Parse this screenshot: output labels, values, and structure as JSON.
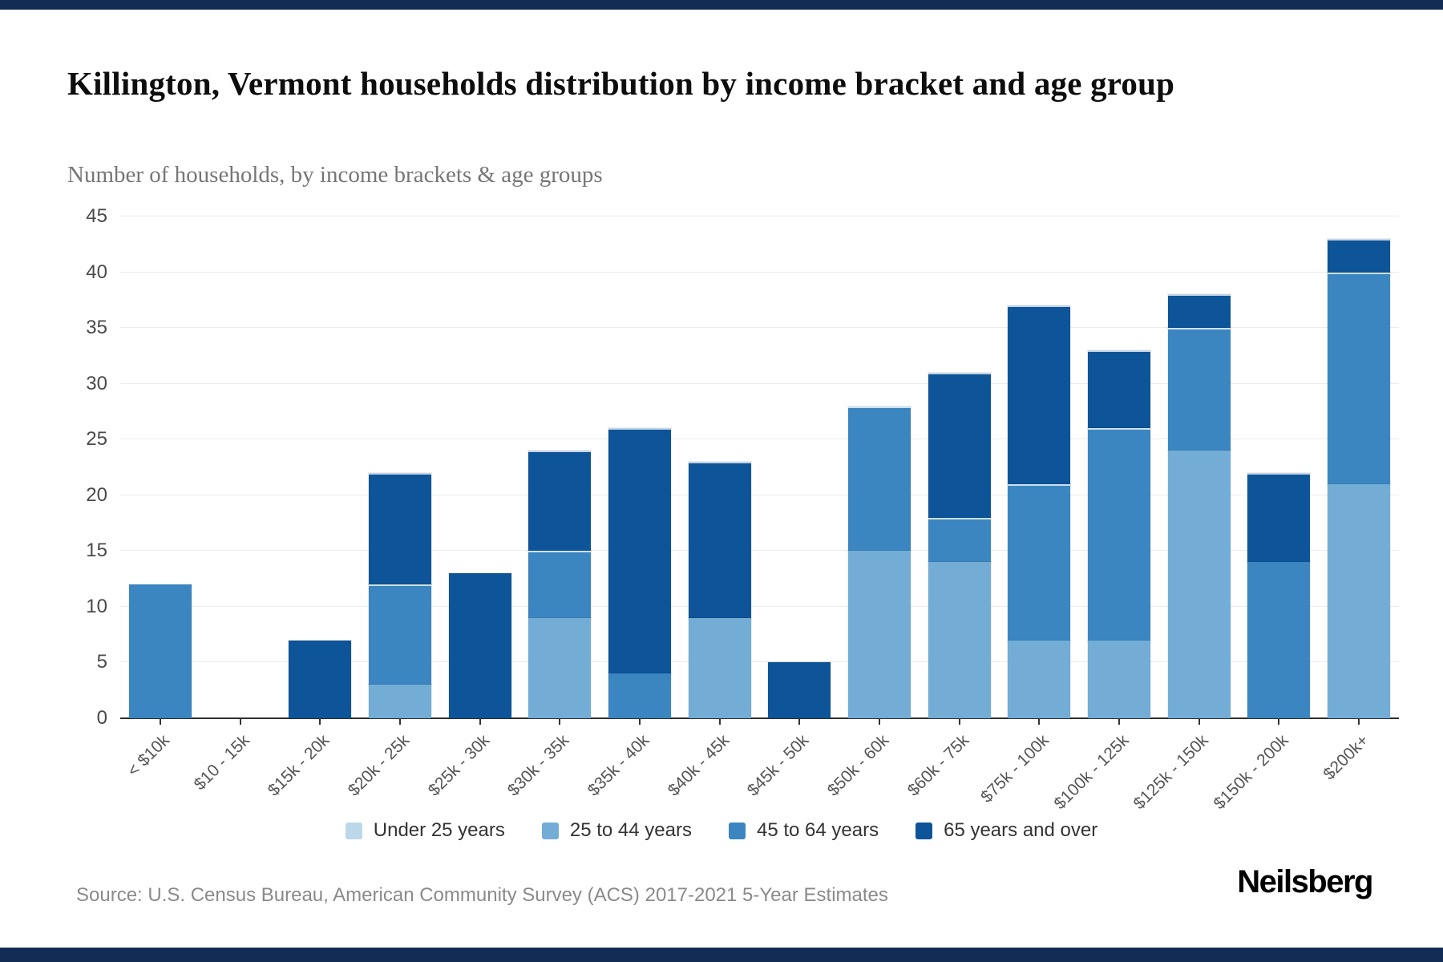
{
  "header": {
    "title": "Killington, Vermont households distribution by income bracket and age group",
    "subtitle": "Number of households, by income brackets & age groups"
  },
  "footer": {
    "source": "Source: U.S. Census Bureau, American Community Survey (ACS) 2017-2021 5-Year Estimates",
    "brand": "Neilsberg"
  },
  "colors": {
    "frame": "#132c54",
    "gridline": "#ececec",
    "axis": "#2e2e2e"
  },
  "chart_data": {
    "type": "bar",
    "stacked": true,
    "title": "Killington, Vermont households distribution by income bracket and age group",
    "subtitle": "Number of households, by income brackets & age groups",
    "xlabel": "",
    "ylabel": "Number of households",
    "ylim": [
      0,
      45
    ],
    "ytick_step": 5,
    "grid": true,
    "legend_position": "bottom",
    "categories": [
      "< $10k",
      "$10 - 15k",
      "$15k - 20k",
      "$20k - 25k",
      "$25k - 30k",
      "$30k - 35k",
      "$35k - 40k",
      "$40k - 45k",
      "$45k - 50k",
      "$50k - 60k",
      "$60k - 75k",
      "$75k - 100k",
      "$100k - 125k",
      "$125k - 150k",
      "$150k - 200k",
      "$200k+"
    ],
    "series": [
      {
        "name": "Under 25 years",
        "color": "#bdd7ea",
        "values": [
          0,
          0,
          0,
          0,
          0,
          0,
          0,
          0,
          0,
          0,
          0,
          0,
          0,
          0,
          0,
          0
        ]
      },
      {
        "name": "25 to 44 years",
        "color": "#73add6",
        "values": [
          0,
          0,
          0,
          3,
          0,
          9,
          0,
          9,
          0,
          15,
          14,
          7,
          7,
          24,
          0,
          21
        ]
      },
      {
        "name": "45 to 64 years",
        "color": "#3b86c1",
        "values": [
          12,
          0,
          0,
          9,
          0,
          6,
          4,
          0,
          0,
          13,
          4,
          14,
          19,
          11,
          14,
          19
        ]
      },
      {
        "name": "65 years and over",
        "color": "#0d5498",
        "values": [
          0,
          0,
          7,
          10,
          13,
          9,
          22,
          14,
          5,
          0,
          13,
          16,
          7,
          3,
          8,
          3
        ]
      }
    ],
    "totals": [
      12,
      0,
      7,
      22,
      13,
      24,
      26,
      23,
      5,
      28,
      31,
      37,
      33,
      38,
      22,
      43
    ]
  }
}
